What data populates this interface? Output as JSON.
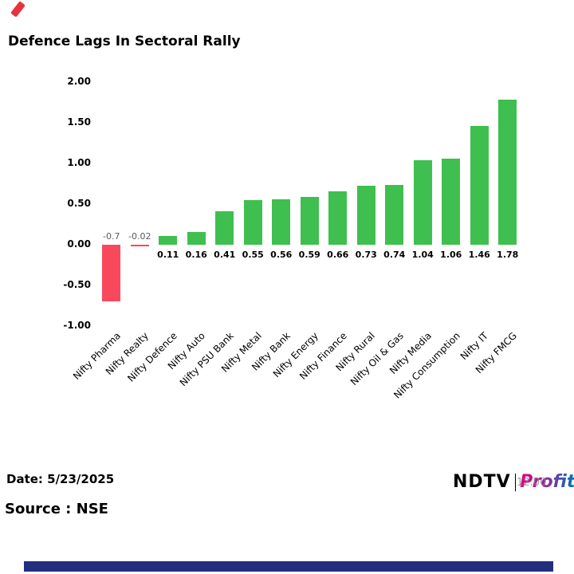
{
  "page": {
    "title": "Defence Lags In Sectoral Rally",
    "date_label": "Date: 5/23/2025",
    "source_label": "Source : NSE",
    "watermark_time": "12:00",
    "brand": {
      "ndtv": "NDTV",
      "separator": "|",
      "profit": "Profit"
    },
    "colors": {
      "accent_red_logo": "#e8323c",
      "bottom_bar_navy": "#232e7f",
      "brand_gradient_start": "#e6007e",
      "brand_gradient_end": "#0072bc"
    }
  },
  "chart_data": {
    "type": "bar",
    "title": "Defence Lags In Sectoral Rally",
    "categories": [
      "Nifty Pharma",
      "Nifty Realty",
      "Nifty Defence",
      "Nifty Auto",
      "Nifty PSU Bank",
      "Nifty Metal",
      "Nifty Bank",
      "Nifty Energy",
      "Nifty Finance",
      "Nifty Rural",
      "Nifty Oil & Gas",
      "Nifty Media",
      "Nifty Consumption",
      "Nifty IT",
      "Nifty FMCG"
    ],
    "values": [
      -0.7,
      -0.02,
      0.11,
      0.16,
      0.41,
      0.55,
      0.56,
      0.59,
      0.66,
      0.73,
      0.74,
      1.04,
      1.06,
      1.46,
      1.78
    ],
    "value_labels": [
      "-0.7",
      "-0.02",
      "0.11",
      "0.16",
      "0.41",
      "0.55",
      "0.56",
      "0.59",
      "0.66",
      "0.73",
      "0.74",
      "1.04",
      "1.06",
      "1.46",
      "1.78"
    ],
    "xlabel": "",
    "ylabel": "",
    "ylim": [
      -1.0,
      2.0
    ],
    "yticks": [
      2.0,
      1.5,
      1.0,
      0.5,
      0.0,
      -0.5,
      -1.0
    ],
    "ytick_labels": [
      "2.00",
      "1.50",
      "1.00",
      "0.50",
      "0.00",
      "-0.50",
      "-1.00"
    ],
    "grid": false,
    "legend": "none",
    "positive_color": "#3fbf50",
    "negative_color": "#f8495c"
  }
}
